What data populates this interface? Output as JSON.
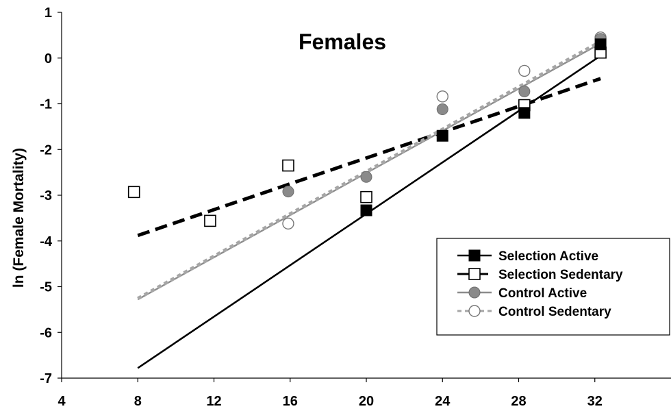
{
  "chart_data": {
    "type": "scatter",
    "title": "Females",
    "xlabel": "",
    "ylabel": "ln (Female Mortality)",
    "xlim": [
      4,
      36
    ],
    "ylim": [
      -7,
      1
    ],
    "x_ticks": [
      4,
      8,
      12,
      16,
      20,
      24,
      28,
      32
    ],
    "y_ticks": [
      1,
      0,
      -1,
      -2,
      -3,
      -4,
      -5,
      -6,
      -7
    ],
    "legend_position": "right",
    "series": [
      {
        "name": "Selection Active",
        "marker": "square-filled",
        "line": "solid",
        "color": "#000000",
        "points": [
          [
            20,
            -3.33
          ],
          [
            24,
            -1.7
          ],
          [
            28.3,
            -1.2
          ],
          [
            32.3,
            0.3
          ]
        ],
        "trend": [
          [
            8,
            -6.78
          ],
          [
            32.3,
            0.05
          ]
        ]
      },
      {
        "name": "Selection Sedentary",
        "marker": "square-open",
        "line": "dashed",
        "color": "#000000",
        "points": [
          [
            7.8,
            -2.93
          ],
          [
            11.8,
            -3.56
          ],
          [
            15.9,
            -2.35
          ],
          [
            20,
            -3.04
          ],
          [
            28.3,
            -1.03
          ],
          [
            32.3,
            0.12
          ]
        ],
        "trend": [
          [
            8,
            -3.88
          ],
          [
            32.3,
            -0.45
          ]
        ]
      },
      {
        "name": "Control Active",
        "marker": "circle-filled",
        "line": "solid-gray",
        "color": "#888888",
        "points": [
          [
            15.9,
            -2.92
          ],
          [
            20,
            -2.6
          ],
          [
            24,
            -1.12
          ],
          [
            28.3,
            -0.73
          ],
          [
            32.3,
            0.42
          ]
        ],
        "trend": [
          [
            8,
            -5.28
          ],
          [
            32.3,
            0.32
          ]
        ]
      },
      {
        "name": "Control Sedentary",
        "marker": "circle-open",
        "line": "dotted",
        "color": "#888888",
        "points": [
          [
            15.9,
            -3.62
          ],
          [
            24,
            -0.84
          ],
          [
            28.3,
            -0.28
          ],
          [
            32.3,
            0.45
          ]
        ],
        "trend": [
          [
            8,
            -5.26
          ],
          [
            32.3,
            0.36
          ]
        ]
      }
    ]
  }
}
